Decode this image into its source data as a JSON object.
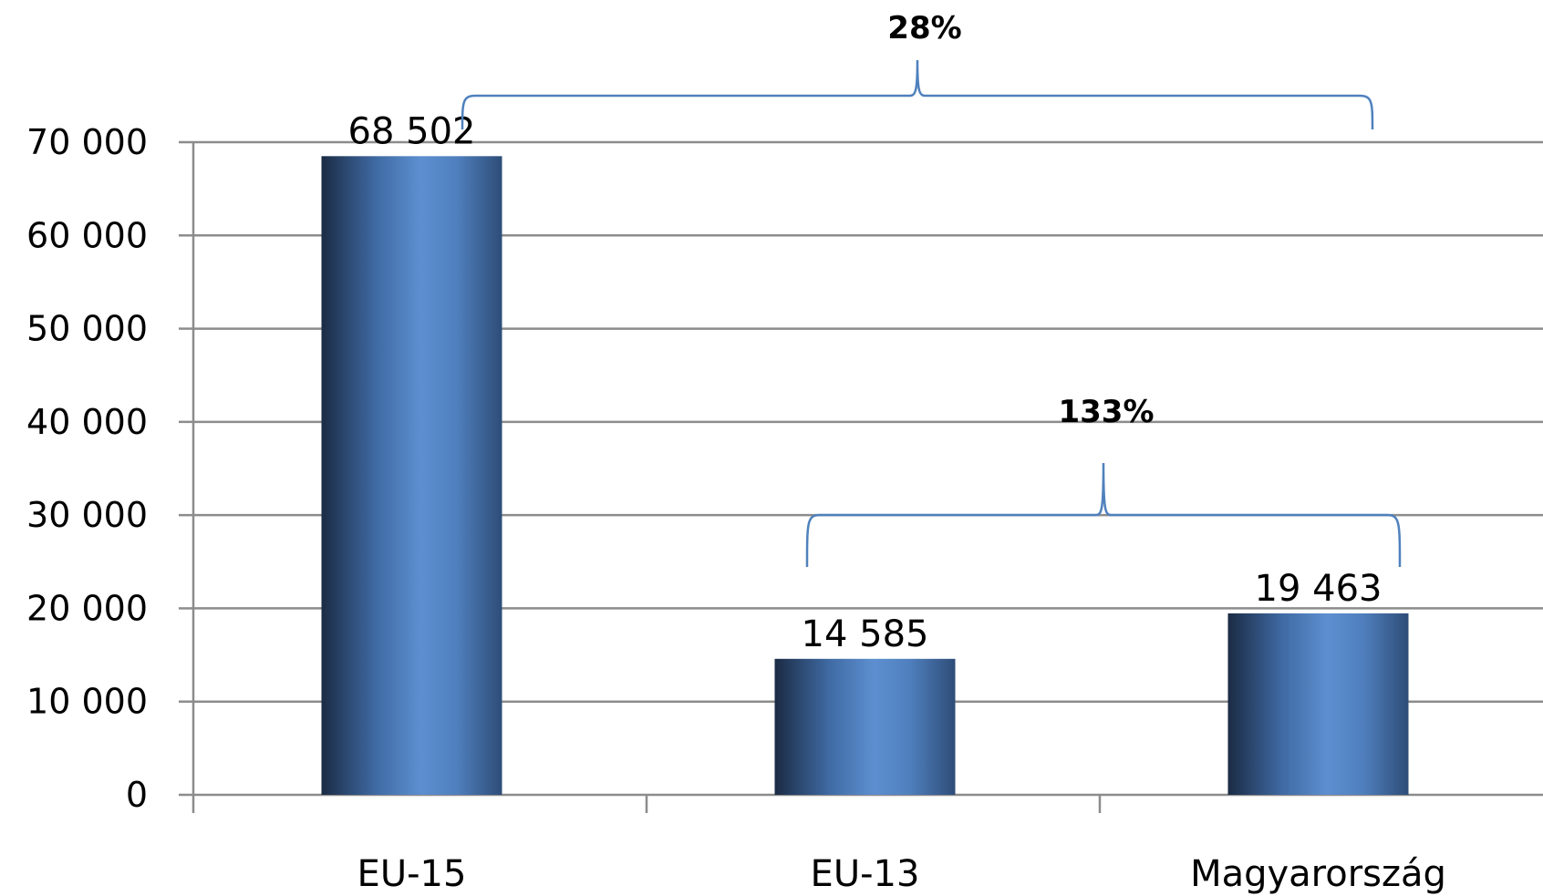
{
  "chart_data": {
    "type": "bar",
    "categories": [
      "EU-15",
      "EU-13",
      "Magyarország"
    ],
    "values": [
      68502,
      14585,
      19463
    ],
    "value_labels": [
      "68 502",
      "14 585",
      "19 463"
    ],
    "ylim": [
      0,
      70000
    ],
    "yticks": [
      0,
      10000,
      20000,
      30000,
      40000,
      50000,
      60000,
      70000
    ],
    "ytick_labels": [
      "0",
      "10 000",
      "20 000",
      "30 000",
      "40 000",
      "50 000",
      "60 000",
      "70 000"
    ],
    "grid": true,
    "legend": "none",
    "bar_color": "#4f81bd",
    "title_color": "#9c8f55",
    "annotations": [
      {
        "label": "28%",
        "from": "EU-15",
        "to": "Magyarország"
      },
      {
        "label": "133%",
        "from": "EU-13",
        "to": "Magyarország"
      }
    ]
  }
}
